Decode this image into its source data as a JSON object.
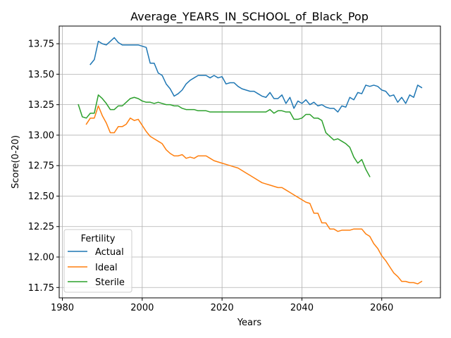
{
  "chart_data": {
    "type": "line",
    "title": "Average_YEARS_IN_SCHOOL_of_Black_Pop",
    "xlabel": "Years",
    "ylabel": "Score(0-20)",
    "xlim": [
      1979.2,
      2074.7
    ],
    "ylim": [
      11.665,
      13.895
    ],
    "xticks": [
      1980,
      2000,
      2020,
      2040,
      2060
    ],
    "yticks": [
      11.75,
      12.0,
      12.25,
      12.5,
      12.75,
      13.0,
      13.25,
      13.5,
      13.75
    ],
    "ytick_labels": [
      "11.75",
      "12.00",
      "12.25",
      "12.50",
      "12.75",
      "13.00",
      "13.25",
      "13.50",
      "13.75"
    ],
    "grid": true,
    "legend": {
      "title": "Fertility",
      "placement": "lower-left"
    },
    "series": [
      {
        "name": "Actual",
        "color": "#1f77b4",
        "x": [
          1987,
          1988,
          1989,
          1990,
          1991,
          1992,
          1993,
          1994,
          1995,
          1996,
          1997,
          1998,
          1999,
          2000,
          2001,
          2002,
          2003,
          2004,
          2005,
          2006,
          2007,
          2008,
          2009,
          2010,
          2011,
          2012,
          2013,
          2014,
          2015,
          2016,
          2017,
          2018,
          2019,
          2020,
          2021,
          2022,
          2023,
          2024,
          2025,
          2026,
          2027,
          2028,
          2029,
          2030,
          2031,
          2032,
          2033,
          2034,
          2035,
          2036,
          2037,
          2038,
          2039,
          2040,
          2041,
          2042,
          2043,
          2044,
          2045,
          2046,
          2047,
          2048,
          2049,
          2050,
          2051,
          2052,
          2053,
          2054,
          2055,
          2056,
          2057,
          2058,
          2059,
          2060,
          2061,
          2062,
          2063,
          2064,
          2065,
          2066,
          2067,
          2068,
          2069,
          2070
        ],
        "y": [
          13.58,
          13.62,
          13.77,
          13.75,
          13.74,
          13.77,
          13.8,
          13.76,
          13.74,
          13.74,
          13.74,
          13.74,
          13.74,
          13.73,
          13.72,
          13.59,
          13.59,
          13.51,
          13.49,
          13.42,
          13.38,
          13.32,
          13.34,
          13.37,
          13.42,
          13.45,
          13.47,
          13.49,
          13.49,
          13.49,
          13.47,
          13.49,
          13.47,
          13.48,
          13.42,
          13.43,
          13.43,
          13.4,
          13.38,
          13.37,
          13.36,
          13.36,
          13.34,
          13.32,
          13.31,
          13.35,
          13.3,
          13.3,
          13.33,
          13.26,
          13.31,
          13.22,
          13.28,
          13.26,
          13.29,
          13.25,
          13.27,
          13.24,
          13.25,
          13.23,
          13.22,
          13.22,
          13.19,
          13.24,
          13.23,
          13.31,
          13.29,
          13.35,
          13.34,
          13.41,
          13.4,
          13.41,
          13.4,
          13.37,
          13.36,
          13.32,
          13.33,
          13.27,
          13.31,
          13.26,
          13.33,
          13.31,
          13.41,
          13.39
        ]
      },
      {
        "name": "Ideal",
        "color": "#ff7f0e",
        "x": [
          1986,
          1987,
          1988,
          1989,
          1990,
          1991,
          1992,
          1993,
          1994,
          1995,
          1996,
          1997,
          1998,
          1999,
          2000,
          2001,
          2002,
          2003,
          2004,
          2005,
          2006,
          2007,
          2008,
          2009,
          2010,
          2011,
          2012,
          2013,
          2014,
          2015,
          2016,
          2017,
          2018,
          2019,
          2020,
          2021,
          2022,
          2023,
          2024,
          2025,
          2026,
          2027,
          2028,
          2029,
          2030,
          2031,
          2032,
          2033,
          2034,
          2035,
          2036,
          2037,
          2038,
          2039,
          2040,
          2041,
          2042,
          2043,
          2044,
          2045,
          2046,
          2047,
          2048,
          2049,
          2050,
          2051,
          2052,
          2053,
          2054,
          2055,
          2056,
          2057,
          2058,
          2059,
          2060,
          2061,
          2062,
          2063,
          2064,
          2065,
          2066,
          2067,
          2068,
          2069,
          2070
        ],
        "y": [
          13.09,
          13.14,
          13.14,
          13.24,
          13.16,
          13.1,
          13.02,
          13.02,
          13.07,
          13.07,
          13.09,
          13.14,
          13.12,
          13.13,
          13.08,
          13.03,
          12.99,
          12.97,
          12.95,
          12.93,
          12.88,
          12.85,
          12.83,
          12.83,
          12.84,
          12.81,
          12.82,
          12.81,
          12.83,
          12.83,
          12.83,
          12.81,
          12.79,
          12.78,
          12.77,
          12.76,
          12.75,
          12.74,
          12.73,
          12.71,
          12.69,
          12.67,
          12.65,
          12.63,
          12.61,
          12.6,
          12.59,
          12.58,
          12.57,
          12.57,
          12.55,
          12.53,
          12.51,
          12.49,
          12.47,
          12.45,
          12.44,
          12.36,
          12.36,
          12.28,
          12.28,
          12.23,
          12.23,
          12.21,
          12.22,
          12.22,
          12.22,
          12.23,
          12.23,
          12.23,
          12.19,
          12.17,
          12.11,
          12.07,
          12.01,
          11.97,
          11.92,
          11.87,
          11.84,
          11.8,
          11.8,
          11.79,
          11.79,
          11.78,
          11.8
        ]
      },
      {
        "name": "Sterile",
        "color": "#2ca02c",
        "x": [
          1984,
          1985,
          1986,
          1987,
          1988,
          1989,
          1990,
          1991,
          1992,
          1993,
          1994,
          1995,
          1996,
          1997,
          1998,
          1999,
          2000,
          2001,
          2002,
          2003,
          2004,
          2005,
          2006,
          2007,
          2008,
          2009,
          2010,
          2011,
          2012,
          2013,
          2014,
          2015,
          2016,
          2017,
          2018,
          2019,
          2020,
          2021,
          2022,
          2023,
          2024,
          2025,
          2026,
          2027,
          2028,
          2029,
          2030,
          2031,
          2032,
          2033,
          2034,
          2035,
          2036,
          2037,
          2038,
          2039,
          2040,
          2041,
          2042,
          2043,
          2044,
          2045,
          2046,
          2047,
          2048,
          2049,
          2050,
          2051,
          2052,
          2053,
          2054,
          2055,
          2056,
          2057
        ],
        "y": [
          13.25,
          13.15,
          13.14,
          13.18,
          13.18,
          13.33,
          13.3,
          13.26,
          13.21,
          13.21,
          13.24,
          13.24,
          13.27,
          13.3,
          13.31,
          13.3,
          13.28,
          13.27,
          13.27,
          13.26,
          13.27,
          13.26,
          13.25,
          13.25,
          13.24,
          13.24,
          13.22,
          13.21,
          13.21,
          13.21,
          13.2,
          13.2,
          13.2,
          13.19,
          13.19,
          13.19,
          13.19,
          13.19,
          13.19,
          13.19,
          13.19,
          13.19,
          13.19,
          13.19,
          13.19,
          13.19,
          13.19,
          13.19,
          13.21,
          13.18,
          13.2,
          13.2,
          13.19,
          13.19,
          13.13,
          13.13,
          13.14,
          13.17,
          13.17,
          13.14,
          13.14,
          13.12,
          13.02,
          12.99,
          12.96,
          12.97,
          12.95,
          12.93,
          12.9,
          12.82,
          12.77,
          12.8,
          12.72,
          12.66
        ]
      }
    ]
  }
}
